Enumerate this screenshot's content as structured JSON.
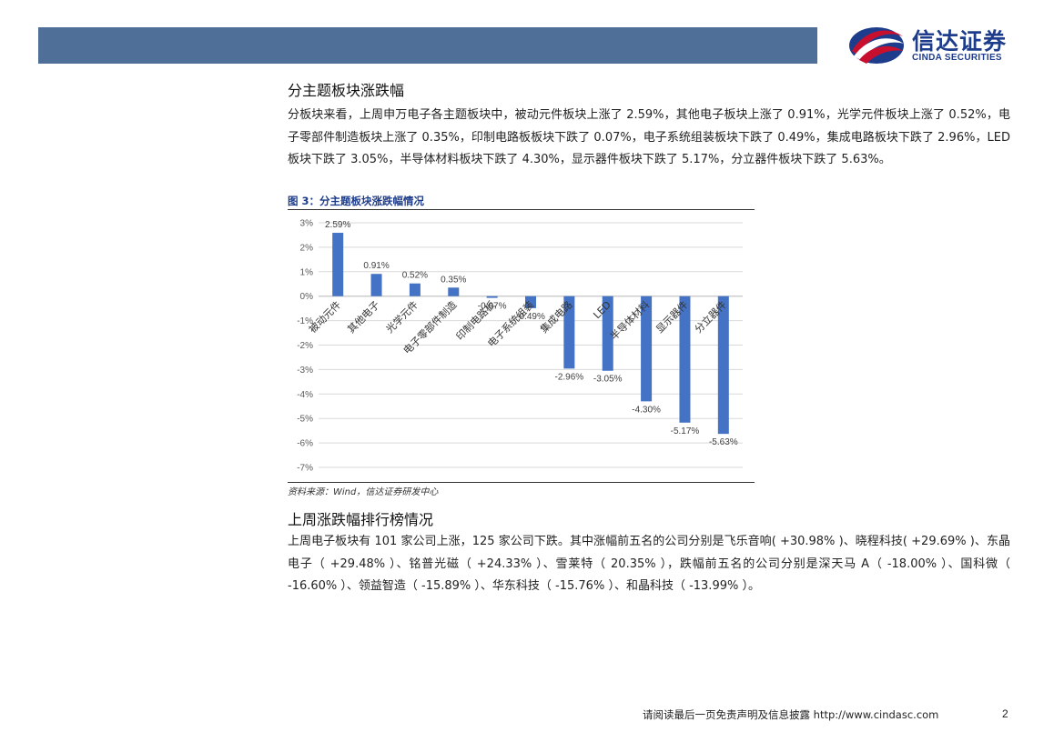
{
  "header": {
    "logo_cn": "信达证券",
    "logo_en": "CINDA SECURITIES",
    "colors": {
      "bar": "#4f6f98",
      "brand_blue": "#1d3c8c",
      "brand_red": "#c8102e"
    }
  },
  "section1": {
    "title": "分主题板块涨跌幅",
    "paragraph": "分板块来看，上周申万电子各主题板块中，被动元件板块上涨了 2.59%，其他电子板块上涨了 0.91%，光学元件板块上涨了 0.52%，电子零部件制造板块上涨了 0.35%，印制电路板板块下跌了 0.07%，电子系统组装板块下跌了 0.49%，集成电路板块下跌了 2.96%，LED 板块下跌了 3.05%，半导体材料板块下跌了 4.30%，显示器件板块下跌了 5.17%，分立器件板块下跌了 5.63%。"
  },
  "figure": {
    "title": "图 3：分主题板块涨跌幅情况",
    "source": "资料来源：Wind，信达证券研发中心"
  },
  "chart_data": {
    "type": "bar",
    "title": "",
    "xlabel": "",
    "ylabel": "",
    "categories": [
      "被动元件",
      "其他电子",
      "光学元件",
      "电子零部件制造",
      "印制电路板",
      "电子系统组装",
      "集成电路",
      "LED",
      "半导体材料",
      "显示器件",
      "分立器件"
    ],
    "values": [
      2.59,
      0.91,
      0.52,
      0.35,
      -0.07,
      -0.49,
      -2.96,
      -3.05,
      -4.3,
      -5.17,
      -5.63
    ],
    "data_labels": [
      "2.59%",
      "0.91%",
      "0.52%",
      "0.35%",
      "-0.07%",
      "-0.49%",
      "-2.96%",
      "-3.05%",
      "-4.30%",
      "-5.17%",
      "-5.63%"
    ],
    "yticks": [
      3,
      2,
      1,
      0,
      -1,
      -2,
      -3,
      -4,
      -5,
      -6,
      -7
    ],
    "ytick_labels": [
      "3%",
      "2%",
      "1%",
      "0%",
      "-1%",
      "-2%",
      "-3%",
      "-4%",
      "-5%",
      "-6%",
      "-7%"
    ],
    "ylim": [
      -7,
      3
    ],
    "grid": true,
    "legend": "none",
    "bar_color": "#4472c4"
  },
  "section2": {
    "title": "上周涨跌幅排行榜情况",
    "paragraph": "上周电子板块有 101 家公司上涨，125 家公司下跌。其中涨幅前五名的公司分别是飞乐音响( +30.98% )、晓程科技( +29.69% )、东晶电子（ +29.48% ）、铭普光磁（ +24.33% ）、雪莱特（ 20.35% ），跌幅前五名的公司分别是深天马 A（ -18.00% ）、国科微（ -16.60% ）、领益智造（ -15.89% ）、华东科技（ -15.76% ）、和晶科技（ -13.99% ）。"
  },
  "footer": {
    "disclaimer": "请阅读最后一页免责声明及信息披露 http://www.cindasc.com",
    "page": "2"
  }
}
